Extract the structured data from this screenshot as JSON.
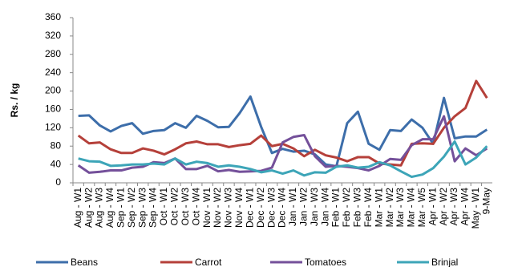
{
  "chart_data": {
    "type": "line",
    "y_label": "Rs. / kg",
    "categories": [
      "Aug - W1",
      "Aug - W2",
      "Aug - W3",
      "Aug - W4",
      "Sep - W1",
      "Sep - W2",
      "Sep - W3",
      "Sep - W4",
      "Oct - W1",
      "Oct - W2",
      "Oct - W3",
      "Oct - W4",
      "Nov - W1",
      "Nov - W2",
      "Nov - W3",
      "Nov - W4",
      "Dec - W1",
      "Dec - W2",
      "Dec - W3",
      "Dec - W4",
      "Jan - W1",
      "Jan - W2",
      "Jan - W3",
      "Jan - W4",
      "Feb - W1",
      "Feb - W2",
      "Feb - W3",
      "Feb - W4",
      "Mar - W1",
      "Mar - W2",
      "Mar - W3",
      "Mar - W4",
      "Mar - W5",
      "Apr - W1",
      "Apr - W2",
      "Apr - W3",
      "Apr - W4",
      "May - W1",
      "9-May"
    ],
    "series": [
      {
        "name": "Beans",
        "color": "#3d6eaa",
        "values": [
          146,
          147,
          125,
          112,
          124,
          130,
          107,
          113,
          115,
          130,
          120,
          146,
          135,
          121,
          122,
          152,
          188,
          122,
          65,
          74,
          68,
          70,
          62,
          40,
          36,
          130,
          155,
          85,
          72,
          115,
          113,
          138,
          120,
          85,
          185,
          97,
          101,
          101,
          116
        ]
      },
      {
        "name": "Carrot",
        "color": "#b5403a",
        "values": [
          103,
          86,
          88,
          73,
          65,
          65,
          75,
          70,
          62,
          73,
          86,
          90,
          84,
          84,
          78,
          82,
          85,
          103,
          80,
          85,
          75,
          58,
          72,
          60,
          55,
          47,
          56,
          56,
          42,
          40,
          38,
          85,
          86,
          85,
          120,
          145,
          163,
          222,
          185
        ]
      },
      {
        "name": "Tomatoes",
        "color": "#74509a",
        "values": [
          38,
          22,
          24,
          27,
          27,
          33,
          35,
          45,
          43,
          53,
          30,
          30,
          37,
          25,
          28,
          24,
          25,
          26,
          33,
          88,
          100,
          104,
          58,
          35,
          37,
          35,
          32,
          27,
          37,
          52,
          50,
          82,
          95,
          95,
          145,
          47,
          75,
          60,
          75
        ]
      },
      {
        "name": "Brinjal",
        "color": "#3da5b8",
        "values": [
          53,
          47,
          46,
          37,
          38,
          40,
          40,
          42,
          40,
          53,
          40,
          46,
          43,
          35,
          38,
          35,
          30,
          23,
          27,
          20,
          27,
          16,
          23,
          22,
          35,
          38,
          33,
          35,
          45,
          38,
          25,
          13,
          18,
          32,
          57,
          90,
          40,
          55,
          80
        ]
      }
    ],
    "ylim": [
      0,
      360
    ],
    "yticks": [
      0,
      40,
      80,
      120,
      160,
      200,
      240,
      280,
      320,
      360
    ],
    "grid": false,
    "legend": "bottom"
  }
}
